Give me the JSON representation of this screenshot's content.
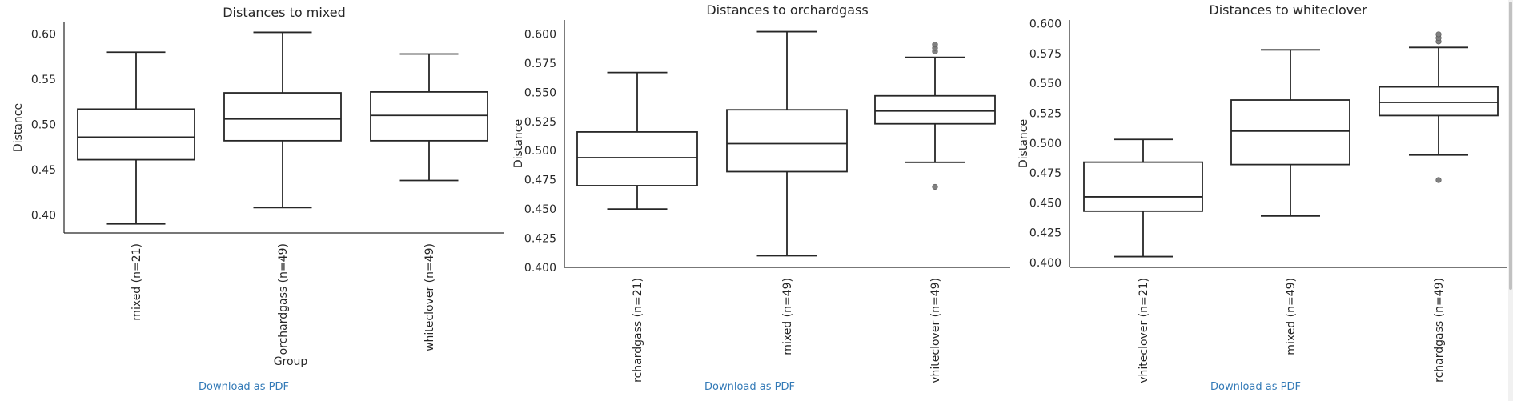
{
  "chart_data": [
    {
      "type": "box",
      "title": "Distances to mixed",
      "ylabel": "Distance",
      "xlabel": "Group",
      "ylim": [
        0.38,
        0.613
      ],
      "yticks": [
        "0.40",
        "0.45",
        "0.50",
        "0.55",
        "0.60"
      ],
      "categories": [
        "mixed (n=21)",
        "orchardgass (n=49)",
        "whiteclover (n=49)"
      ],
      "boxes": [
        {
          "whislo": 0.39,
          "q1": 0.461,
          "median": 0.486,
          "q3": 0.517,
          "whishi": 0.58,
          "fliers": []
        },
        {
          "whislo": 0.408,
          "q1": 0.482,
          "median": 0.506,
          "q3": 0.535,
          "whishi": 0.602,
          "fliers": []
        },
        {
          "whislo": 0.438,
          "q1": 0.482,
          "median": 0.51,
          "q3": 0.536,
          "whishi": 0.578,
          "fliers": []
        }
      ]
    },
    {
      "type": "box",
      "title": "Distances to orchardgass",
      "ylabel": "Distance",
      "xlabel": "",
      "ylim": [
        0.4,
        0.612
      ],
      "yticks": [
        "0.400",
        "0.425",
        "0.450",
        "0.475",
        "0.500",
        "0.525",
        "0.550",
        "0.575",
        "0.600"
      ],
      "categories": [
        "rchardgass (n=21)",
        "mixed (n=49)",
        "vhiteclover (n=49)"
      ],
      "boxes": [
        {
          "whislo": 0.45,
          "q1": 0.47,
          "median": 0.494,
          "q3": 0.516,
          "whishi": 0.567,
          "fliers": []
        },
        {
          "whislo": 0.41,
          "q1": 0.482,
          "median": 0.506,
          "q3": 0.535,
          "whishi": 0.602,
          "fliers": []
        },
        {
          "whislo": 0.49,
          "q1": 0.523,
          "median": 0.534,
          "q3": 0.547,
          "whishi": 0.58,
          "fliers": [
            0.469,
            0.585,
            0.588,
            0.591
          ]
        }
      ]
    },
    {
      "type": "box",
      "title": "Distances to whiteclover",
      "ylabel": "Distance",
      "xlabel": "",
      "ylim": [
        0.396,
        0.603
      ],
      "yticks": [
        "0.400",
        "0.425",
        "0.450",
        "0.475",
        "0.500",
        "0.525",
        "0.550",
        "0.575",
        "0.600"
      ],
      "categories": [
        "vhiteclover (n=21)",
        "mixed (n=49)",
        "rchardgass (n=49)"
      ],
      "boxes": [
        {
          "whislo": 0.405,
          "q1": 0.443,
          "median": 0.455,
          "q3": 0.484,
          "whishi": 0.503,
          "fliers": []
        },
        {
          "whislo": 0.439,
          "q1": 0.482,
          "median": 0.51,
          "q3": 0.536,
          "whishi": 0.578,
          "fliers": []
        },
        {
          "whislo": 0.49,
          "q1": 0.523,
          "median": 0.534,
          "q3": 0.547,
          "whishi": 0.58,
          "fliers": [
            0.469,
            0.585,
            0.588,
            0.591
          ]
        }
      ]
    }
  ],
  "links": [
    "Download as PDF",
    "Download as PDF",
    "Download as PDF"
  ],
  "colors": {
    "box_line": "#262626",
    "flier": "#808080",
    "link": "#337ab7",
    "axis": "#262626"
  }
}
